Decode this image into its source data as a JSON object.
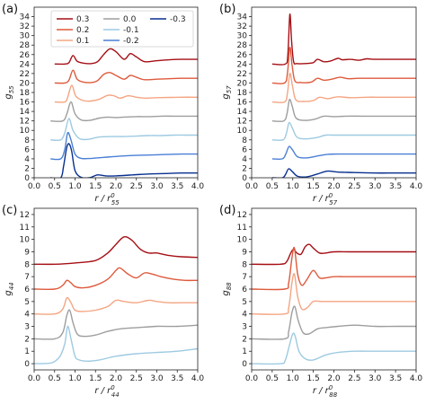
{
  "colors": {
    "0.3": "#a50f15",
    "0.2": "#de5a3c",
    "0.1": "#f4a582",
    "0.0": "#9e9e9e",
    "-0.1": "#9ecae1",
    "-0.2": "#4a7fd6",
    "-0.3": "#08308f"
  },
  "legend": {
    "entries": [
      "0.3",
      "0.2",
      "0.1",
      "0.0",
      "-0.1",
      "-0.2",
      "-0.3"
    ]
  },
  "chart_data": [
    {
      "panel": "(a)",
      "type": "line",
      "xlabel_main": "r / r",
      "xlabel_sup": "0",
      "xlabel_sub": "55",
      "ylabel_main": "g",
      "ylabel_sub": "55",
      "xlim": [
        0.0,
        4.0
      ],
      "ylim": [
        0,
        36
      ],
      "xticks": [
        "0.0",
        "0.5",
        "1.0",
        "1.5",
        "2.0",
        "2.5",
        "3.0",
        "3.5",
        "4.0"
      ],
      "yticks": [
        "0",
        "2",
        "4",
        "6",
        "8",
        "10",
        "12",
        "14",
        "16",
        "18",
        "20",
        "22",
        "24",
        "26",
        "28",
        "30",
        "32",
        "34"
      ],
      "series": [
        {
          "name": "0.3",
          "offset": 24,
          "x": [
            0.5,
            0.75,
            0.85,
            0.95,
            1.05,
            1.2,
            1.4,
            1.55,
            1.7,
            1.85,
            2.0,
            2.2,
            2.35,
            2.5,
            2.7,
            3.0,
            3.3,
            3.6,
            4.0
          ],
          "y": [
            0,
            0,
            0.3,
            1.8,
            0.6,
            0.2,
            0.1,
            0.5,
            2.0,
            3.2,
            2.6,
            1.0,
            2.2,
            1.5,
            0.5,
            0.7,
            0.9,
            1.0,
            1.0
          ]
        },
        {
          "name": "0.2",
          "offset": 20,
          "x": [
            0.5,
            0.75,
            0.85,
            0.95,
            1.05,
            1.2,
            1.4,
            1.55,
            1.7,
            1.85,
            2.0,
            2.2,
            2.35,
            2.5,
            2.7,
            3.0,
            3.3,
            3.6,
            4.0
          ],
          "y": [
            0,
            0,
            0.6,
            2.7,
            0.8,
            0.2,
            0.1,
            0.5,
            1.8,
            2.2,
            1.6,
            0.8,
            1.6,
            1.2,
            0.7,
            0.8,
            0.9,
            1.0,
            1.0
          ]
        },
        {
          "name": "0.1",
          "offset": 16,
          "x": [
            0.5,
            0.75,
            0.82,
            0.92,
            1.02,
            1.2,
            1.4,
            1.6,
            1.8,
            1.95,
            2.1,
            2.3,
            2.5,
            2.7,
            3.0,
            3.3,
            3.6,
            4.0
          ],
          "y": [
            0,
            0,
            1.0,
            3.5,
            1.2,
            0.3,
            0.2,
            0.6,
            1.4,
            1.3,
            0.8,
            1.3,
            1.0,
            0.8,
            0.9,
            0.95,
            1.0,
            1.0
          ]
        },
        {
          "name": "0.0",
          "offset": 12,
          "x": [
            0.4,
            0.7,
            0.8,
            0.9,
            1.0,
            1.15,
            1.35,
            1.6,
            1.8,
            2.0,
            2.2,
            2.5,
            2.8,
            3.1,
            3.4,
            3.7,
            4.0
          ],
          "y": [
            0,
            0,
            1.5,
            4.0,
            1.5,
            0.2,
            0.1,
            0.6,
            0.8,
            0.7,
            0.8,
            0.9,
            0.9,
            1.0,
            1.0,
            1.0,
            1.0
          ]
        },
        {
          "name": "-0.1",
          "offset": 8,
          "x": [
            0.4,
            0.65,
            0.75,
            0.85,
            0.95,
            1.1,
            1.3,
            1.6,
            1.9,
            2.2,
            2.5,
            2.8,
            3.1,
            3.4,
            3.7,
            4.0
          ],
          "y": [
            0,
            0,
            1.5,
            4.5,
            2.0,
            0.3,
            0.1,
            0.6,
            0.7,
            0.7,
            0.8,
            0.9,
            0.9,
            1.0,
            1.0,
            1.0
          ]
        },
        {
          "name": "-0.2",
          "offset": 4,
          "x": [
            0.4,
            0.65,
            0.75,
            0.82,
            0.9,
            1.0,
            1.15,
            1.4,
            1.7,
            2.0,
            2.4,
            2.8,
            3.2,
            3.6,
            4.0
          ],
          "y": [
            0,
            0,
            2.0,
            5.5,
            4.0,
            1.0,
            0.1,
            0.1,
            0.3,
            0.5,
            0.7,
            0.8,
            0.9,
            1.0,
            1.0
          ]
        },
        {
          "name": "-0.3",
          "offset": 0,
          "x": [
            0.4,
            0.65,
            0.72,
            0.8,
            0.86,
            0.92,
            1.0,
            1.15,
            1.35,
            1.55,
            1.75,
            2.0,
            2.4,
            2.8,
            3.2,
            3.6,
            4.0
          ],
          "y": [
            0,
            0,
            2.5,
            6.5,
            7.1,
            5.5,
            1.5,
            0.1,
            0.0,
            0.6,
            0.4,
            0.4,
            0.6,
            0.8,
            0.9,
            1.0,
            1.0
          ]
        }
      ]
    },
    {
      "panel": "(b)",
      "type": "line",
      "xlabel_main": "r / r",
      "xlabel_sup": "0",
      "xlabel_sub": "57",
      "ylabel_main": "g",
      "ylabel_sub": "57",
      "xlim": [
        0.0,
        4.0
      ],
      "ylim": [
        0,
        36
      ],
      "xticks": [
        "0.0",
        "0.5",
        "1.0",
        "1.5",
        "2.0",
        "2.5",
        "3.0",
        "3.5",
        "4.0"
      ],
      "yticks": [
        "0",
        "2",
        "4",
        "6",
        "8",
        "10",
        "12",
        "14",
        "16",
        "18",
        "20",
        "22",
        "24",
        "26",
        "28",
        "30",
        "32",
        "34"
      ],
      "series": [
        {
          "name": "0.3",
          "offset": 24,
          "x": [
            0.5,
            0.82,
            0.88,
            0.93,
            0.97,
            1.02,
            1.1,
            1.3,
            1.5,
            1.6,
            1.75,
            1.9,
            2.1,
            2.2,
            2.4,
            2.6,
            2.8,
            3.0,
            3.3,
            3.6,
            4.0
          ],
          "y": [
            0,
            0,
            2.0,
            10.5,
            5.0,
            0.5,
            0.1,
            0.1,
            0.3,
            1.0,
            0.5,
            0.6,
            1.2,
            0.9,
            1.0,
            0.8,
            1.1,
            1.0,
            1.0,
            1.0,
            1.0
          ]
        },
        {
          "name": "0.2",
          "offset": 20,
          "x": [
            0.5,
            0.8,
            0.87,
            0.93,
            0.98,
            1.05,
            1.2,
            1.45,
            1.6,
            1.75,
            1.95,
            2.15,
            2.35,
            2.6,
            2.9,
            3.3,
            3.7,
            4.0
          ],
          "y": [
            0,
            0,
            2.0,
            7.5,
            4.0,
            0.5,
            0.1,
            0.2,
            1.0,
            0.6,
            0.8,
            1.2,
            0.9,
            1.0,
            1.0,
            1.0,
            1.0,
            1.0
          ]
        },
        {
          "name": "0.1",
          "offset": 16,
          "x": [
            0.5,
            0.8,
            0.87,
            0.93,
            0.99,
            1.07,
            1.25,
            1.5,
            1.65,
            1.85,
            2.1,
            2.4,
            2.8,
            3.2,
            3.6,
            4.0
          ],
          "y": [
            0,
            0,
            1.8,
            6.0,
            3.5,
            0.5,
            0.1,
            0.3,
            1.0,
            0.7,
            1.1,
            0.9,
            1.0,
            1.0,
            1.0,
            1.0
          ]
        },
        {
          "name": "0.0",
          "offset": 12,
          "x": [
            0.5,
            0.78,
            0.86,
            0.92,
            0.99,
            1.08,
            1.3,
            1.55,
            1.75,
            2.0,
            2.3,
            2.7,
            3.1,
            3.5,
            4.0
          ],
          "y": [
            0,
            0,
            1.5,
            4.5,
            3.0,
            0.6,
            0.1,
            0.4,
            1.0,
            0.9,
            1.0,
            1.0,
            1.0,
            1.0,
            1.0
          ]
        },
        {
          "name": "-0.1",
          "offset": 8,
          "x": [
            0.5,
            0.76,
            0.84,
            0.91,
            0.99,
            1.1,
            1.3,
            1.6,
            1.8,
            2.0,
            2.4,
            2.8,
            3.2,
            3.6,
            4.0
          ],
          "y": [
            0,
            0,
            1.2,
            3.6,
            2.5,
            0.6,
            0.2,
            0.5,
            1.0,
            1.0,
            1.0,
            1.0,
            1.0,
            1.0,
            1.0
          ]
        },
        {
          "name": "-0.2",
          "offset": 4,
          "x": [
            0.5,
            0.75,
            0.83,
            0.91,
            1.0,
            1.12,
            1.35,
            1.6,
            1.85,
            2.1,
            2.5,
            3.0,
            3.5,
            4.0
          ],
          "y": [
            0,
            0,
            1.0,
            2.6,
            1.8,
            0.4,
            0.2,
            0.6,
            0.95,
            1.0,
            1.0,
            1.0,
            1.0,
            1.0
          ]
        },
        {
          "name": "-0.3",
          "offset": 0,
          "x": [
            0.5,
            0.75,
            0.83,
            0.9,
            1.0,
            1.12,
            1.35,
            1.6,
            1.85,
            2.1,
            2.5,
            3.0,
            3.5,
            4.0
          ],
          "y": [
            0,
            0,
            0.8,
            1.9,
            1.2,
            0.3,
            0.2,
            0.8,
            1.4,
            1.2,
            1.1,
            1.0,
            1.0,
            1.0
          ]
        }
      ]
    },
    {
      "panel": "(c)",
      "type": "line",
      "xlabel_main": "r / r",
      "xlabel_sup": "0",
      "xlabel_sub": "44",
      "ylabel_main": "g",
      "ylabel_sub": "44",
      "xlim": [
        0.0,
        4.0
      ],
      "ylim": [
        -0.5,
        12.5
      ],
      "xticks": [
        "0.0",
        "0.5",
        "1.0",
        "1.5",
        "2.0",
        "2.5",
        "3.0",
        "3.5",
        "4.0"
      ],
      "yticks": [
        "0",
        "1",
        "2",
        "3",
        "4",
        "5",
        "6",
        "7",
        "8",
        "9",
        "10",
        "11",
        "12"
      ],
      "series": [
        {
          "name": "0.3",
          "offset": 8,
          "x": [
            0.0,
            0.5,
            1.0,
            1.5,
            1.8,
            2.0,
            2.15,
            2.25,
            2.4,
            2.6,
            2.8,
            3.0,
            3.3,
            3.6,
            4.0
          ],
          "y": [
            0.0,
            0.0,
            0.1,
            0.3,
            0.9,
            1.6,
            2.1,
            2.2,
            1.9,
            1.2,
            0.9,
            0.9,
            0.7,
            0.6,
            0.55
          ]
        },
        {
          "name": "0.2",
          "offset": 6,
          "x": [
            0.0,
            0.5,
            0.7,
            0.8,
            0.9,
            1.0,
            1.2,
            1.5,
            1.8,
            2.0,
            2.1,
            2.3,
            2.5,
            2.7,
            2.9,
            3.1,
            3.4,
            3.7,
            4.0
          ],
          "y": [
            0.0,
            0.0,
            0.3,
            0.7,
            0.5,
            0.2,
            0.1,
            0.3,
            0.8,
            1.5,
            1.7,
            1.2,
            0.9,
            1.3,
            1.2,
            1.0,
            0.8,
            0.7,
            0.7
          ]
        },
        {
          "name": "0.1",
          "offset": 4,
          "x": [
            0.0,
            0.5,
            0.7,
            0.8,
            0.9,
            1.0,
            1.2,
            1.5,
            1.8,
            2.0,
            2.2,
            2.5,
            2.8,
            3.0,
            3.3,
            3.6,
            4.0
          ],
          "y": [
            0.0,
            0.0,
            0.4,
            1.3,
            0.9,
            0.3,
            0.2,
            0.3,
            0.6,
            1.1,
            1.0,
            0.9,
            1.1,
            1.0,
            0.9,
            0.9,
            0.9
          ]
        },
        {
          "name": "0.0",
          "offset": 2,
          "x": [
            0.0,
            0.5,
            0.7,
            0.8,
            0.87,
            0.95,
            1.05,
            1.2,
            1.5,
            1.8,
            2.1,
            2.5,
            3.0,
            3.5,
            4.0
          ],
          "y": [
            0.0,
            0.0,
            0.5,
            1.9,
            2.3,
            1.3,
            0.4,
            0.2,
            0.3,
            0.6,
            0.8,
            0.9,
            1.0,
            1.0,
            1.1
          ]
        },
        {
          "name": "-0.1",
          "offset": 0,
          "x": [
            0.0,
            0.4,
            0.55,
            0.65,
            0.75,
            0.82,
            0.9,
            1.0,
            1.1,
            1.3,
            1.6,
            2.0,
            2.5,
            3.0,
            3.5,
            4.0
          ],
          "y": [
            0.0,
            0.05,
            0.3,
            0.7,
            1.6,
            3.0,
            2.0,
            0.6,
            0.3,
            0.2,
            0.3,
            0.6,
            0.8,
            0.9,
            1.0,
            1.2
          ]
        }
      ]
    },
    {
      "panel": "(d)",
      "type": "line",
      "xlabel_main": "r / r",
      "xlabel_sup": "0",
      "xlabel_sub": "88",
      "ylabel_main": "g",
      "ylabel_sub": "88",
      "xlim": [
        0.0,
        4.0
      ],
      "ylim": [
        -0.5,
        12.5
      ],
      "xticks": [
        "0.0",
        "0.5",
        "1.0",
        "1.5",
        "2.0",
        "2.5",
        "3.0",
        "3.5",
        "4.0"
      ],
      "yticks": [
        "0",
        "1",
        "2",
        "3",
        "4",
        "5",
        "6",
        "7",
        "8",
        "9",
        "10",
        "11",
        "12"
      ],
      "series": [
        {
          "name": "0.3",
          "offset": 8,
          "x": [
            0.0,
            0.7,
            0.85,
            0.95,
            1.02,
            1.1,
            1.2,
            1.3,
            1.4,
            1.5,
            1.65,
            1.8,
            2.0,
            2.4,
            3.0,
            3.5,
            4.0
          ],
          "y": [
            0.0,
            0.0,
            0.2,
            0.9,
            1.2,
            0.9,
            0.8,
            1.4,
            1.6,
            1.3,
            0.9,
            0.9,
            1.0,
            1.0,
            1.0,
            1.0,
            1.0
          ]
        },
        {
          "name": "0.2",
          "offset": 6,
          "x": [
            0.0,
            0.8,
            0.9,
            0.98,
            1.04,
            1.12,
            1.22,
            1.35,
            1.5,
            1.65,
            1.8,
            2.0,
            2.3,
            2.8,
            3.3,
            4.0
          ],
          "y": [
            0.0,
            0.0,
            0.5,
            2.5,
            3.3,
            1.2,
            0.3,
            0.8,
            1.5,
            0.9,
            0.9,
            1.0,
            1.0,
            1.0,
            1.0,
            1.0
          ]
        },
        {
          "name": "0.1",
          "offset": 4,
          "x": [
            0.0,
            0.8,
            0.9,
            0.98,
            1.04,
            1.12,
            1.22,
            1.35,
            1.5,
            1.7,
            1.9,
            2.2,
            2.6,
            3.0,
            3.5,
            4.0
          ],
          "y": [
            0.0,
            0.0,
            0.5,
            2.5,
            3.2,
            1.4,
            0.4,
            0.5,
            1.0,
            1.0,
            1.0,
            1.0,
            1.0,
            1.0,
            1.0,
            1.0
          ]
        },
        {
          "name": "0.0",
          "offset": 2,
          "x": [
            0.0,
            0.8,
            0.9,
            0.98,
            1.05,
            1.13,
            1.25,
            1.4,
            1.6,
            1.8,
            2.1,
            2.5,
            3.0,
            3.5,
            4.0
          ],
          "y": [
            0.0,
            0.0,
            0.6,
            2.1,
            2.6,
            1.5,
            0.5,
            0.4,
            0.8,
            0.9,
            1.0,
            1.1,
            1.0,
            1.0,
            1.0
          ]
        },
        {
          "name": "-0.1",
          "offset": 0,
          "x": [
            0.0,
            0.7,
            0.82,
            0.92,
            1.0,
            1.06,
            1.15,
            1.3,
            1.5,
            1.8,
            2.1,
            2.5,
            3.0,
            3.5,
            4.0
          ],
          "y": [
            0.0,
            0.0,
            0.3,
            1.5,
            2.4,
            2.2,
            1.0,
            0.4,
            0.3,
            0.7,
            0.9,
            1.0,
            1.0,
            1.0,
            1.0
          ]
        }
      ]
    }
  ]
}
